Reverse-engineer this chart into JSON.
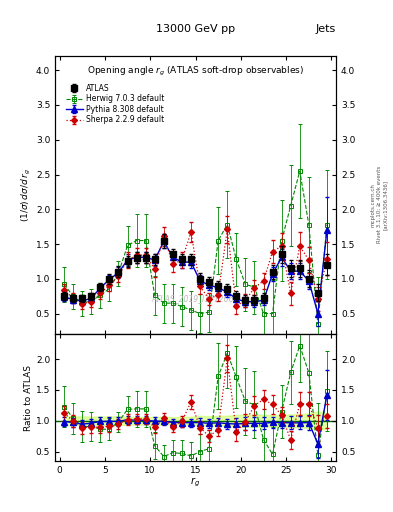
{
  "title": "13000 GeV pp",
  "title_right": "Jets",
  "plot_title": "Opening angle $r_g$ (ATLAS soft-drop observables)",
  "ylabel_main": "$(1/\\sigma)\\,d\\sigma/d\\,r_g$",
  "ylabel_ratio": "Ratio to ATLAS",
  "xlabel": "$r_g$",
  "watermark": "ATLAS_2019_I1772062",
  "rivet_text": "Rivet 3.1.10; ≥ 400k events",
  "arxiv_text": "[arXiv:1306.3436]",
  "mcplots_text": "mcplots.cern.ch",
  "x_atlas": [
    0.5,
    1.5,
    2.5,
    3.5,
    4.5,
    5.5,
    6.5,
    7.5,
    8.5,
    9.5,
    10.5,
    11.5,
    12.5,
    13.5,
    14.5,
    15.5,
    16.5,
    17.5,
    18.5,
    19.5,
    20.5,
    21.5,
    22.5,
    23.5,
    24.5,
    25.5,
    26.5,
    27.5,
    28.5,
    29.5
  ],
  "y_atlas": [
    0.75,
    0.72,
    0.72,
    0.75,
    0.88,
    1.0,
    1.1,
    1.25,
    1.3,
    1.3,
    1.28,
    1.55,
    1.35,
    1.28,
    1.28,
    1.0,
    0.95,
    0.9,
    0.85,
    0.75,
    0.7,
    0.7,
    0.72,
    1.1,
    1.35,
    1.15,
    1.15,
    1.0,
    0.8,
    1.2
  ],
  "y_atlas_err": [
    0.06,
    0.05,
    0.05,
    0.05,
    0.06,
    0.07,
    0.08,
    0.08,
    0.08,
    0.08,
    0.08,
    0.1,
    0.08,
    0.08,
    0.08,
    0.08,
    0.07,
    0.07,
    0.07,
    0.07,
    0.07,
    0.07,
    0.07,
    0.1,
    0.12,
    0.12,
    0.12,
    0.12,
    0.12,
    0.15
  ],
  "x_herwig": [
    0.5,
    1.5,
    2.5,
    3.5,
    4.5,
    5.5,
    6.5,
    7.5,
    8.5,
    9.5,
    10.5,
    11.5,
    12.5,
    13.5,
    14.5,
    15.5,
    16.5,
    17.5,
    18.5,
    19.5,
    20.5,
    21.5,
    22.5,
    23.5,
    24.5,
    25.5,
    26.5,
    27.5,
    28.5,
    29.5
  ],
  "y_herwig": [
    0.92,
    0.75,
    0.65,
    0.68,
    0.76,
    0.86,
    1.08,
    1.48,
    1.55,
    1.55,
    0.76,
    0.65,
    0.65,
    0.6,
    0.55,
    0.5,
    0.52,
    1.55,
    1.78,
    1.28,
    0.92,
    0.88,
    0.5,
    0.5,
    1.55,
    2.05,
    2.55,
    1.78,
    0.35,
    1.78
  ],
  "y_herwig_err": [
    0.25,
    0.18,
    0.18,
    0.18,
    0.18,
    0.18,
    0.18,
    0.28,
    0.38,
    0.38,
    0.28,
    0.28,
    0.28,
    0.28,
    0.28,
    0.28,
    0.28,
    0.48,
    0.48,
    0.38,
    0.38,
    0.38,
    0.48,
    0.48,
    0.58,
    0.58,
    0.68,
    0.68,
    0.68,
    0.78
  ],
  "x_pythia": [
    0.5,
    1.5,
    2.5,
    3.5,
    4.5,
    5.5,
    6.5,
    7.5,
    8.5,
    9.5,
    10.5,
    11.5,
    12.5,
    13.5,
    14.5,
    15.5,
    16.5,
    17.5,
    18.5,
    19.5,
    20.5,
    21.5,
    22.5,
    23.5,
    24.5,
    25.5,
    26.5,
    27.5,
    28.5,
    29.5
  ],
  "y_pythia": [
    0.74,
    0.7,
    0.68,
    0.72,
    0.87,
    0.99,
    1.09,
    1.27,
    1.31,
    1.31,
    1.27,
    1.54,
    1.31,
    1.24,
    1.24,
    0.97,
    0.91,
    0.87,
    0.81,
    0.71,
    0.67,
    0.67,
    0.69,
    1.07,
    1.31,
    1.11,
    1.11,
    0.97,
    0.5,
    1.7
  ],
  "y_pythia_err": [
    0.06,
    0.05,
    0.05,
    0.05,
    0.06,
    0.07,
    0.08,
    0.08,
    0.08,
    0.08,
    0.08,
    0.1,
    0.08,
    0.08,
    0.08,
    0.08,
    0.07,
    0.07,
    0.07,
    0.07,
    0.07,
    0.07,
    0.07,
    0.1,
    0.12,
    0.12,
    0.12,
    0.12,
    0.18,
    0.48
  ],
  "x_sherpa": [
    0.5,
    1.5,
    2.5,
    3.5,
    4.5,
    5.5,
    6.5,
    7.5,
    8.5,
    9.5,
    10.5,
    11.5,
    12.5,
    13.5,
    14.5,
    15.5,
    16.5,
    17.5,
    18.5,
    19.5,
    20.5,
    21.5,
    22.5,
    23.5,
    24.5,
    25.5,
    26.5,
    27.5,
    28.5,
    29.5
  ],
  "y_sherpa": [
    0.84,
    0.72,
    0.64,
    0.67,
    0.79,
    0.91,
    1.04,
    1.27,
    1.34,
    1.34,
    1.14,
    1.61,
    1.21,
    1.27,
    1.67,
    0.89,
    0.71,
    0.77,
    1.71,
    0.61,
    0.69,
    0.87,
    0.97,
    1.39,
    1.47,
    0.79,
    1.47,
    1.27,
    0.71,
    1.29
  ],
  "y_sherpa_err": [
    0.09,
    0.07,
    0.07,
    0.07,
    0.08,
    0.09,
    0.09,
    0.11,
    0.11,
    0.11,
    0.11,
    0.14,
    0.11,
    0.11,
    0.14,
    0.11,
    0.09,
    0.09,
    0.19,
    0.11,
    0.09,
    0.11,
    0.11,
    0.17,
    0.19,
    0.17,
    0.21,
    0.19,
    0.17,
    0.24
  ],
  "color_atlas": "black",
  "color_herwig": "#008800",
  "color_pythia": "#0000cc",
  "color_sherpa": "#cc0000",
  "main_ylim": [
    0.2,
    4.2
  ],
  "ratio_ylim": [
    0.35,
    2.4
  ],
  "xlim": [
    -0.5,
    30.5
  ],
  "main_yticks": [
    0.5,
    1.0,
    1.5,
    2.0,
    2.5,
    3.0,
    3.5,
    4.0
  ],
  "ratio_yticks": [
    0.5,
    1.0,
    1.5,
    2.0
  ],
  "xticks": [
    0,
    5,
    10,
    15,
    20,
    25,
    30
  ],
  "band_color": "#ccff66",
  "band_alpha": 0.6
}
